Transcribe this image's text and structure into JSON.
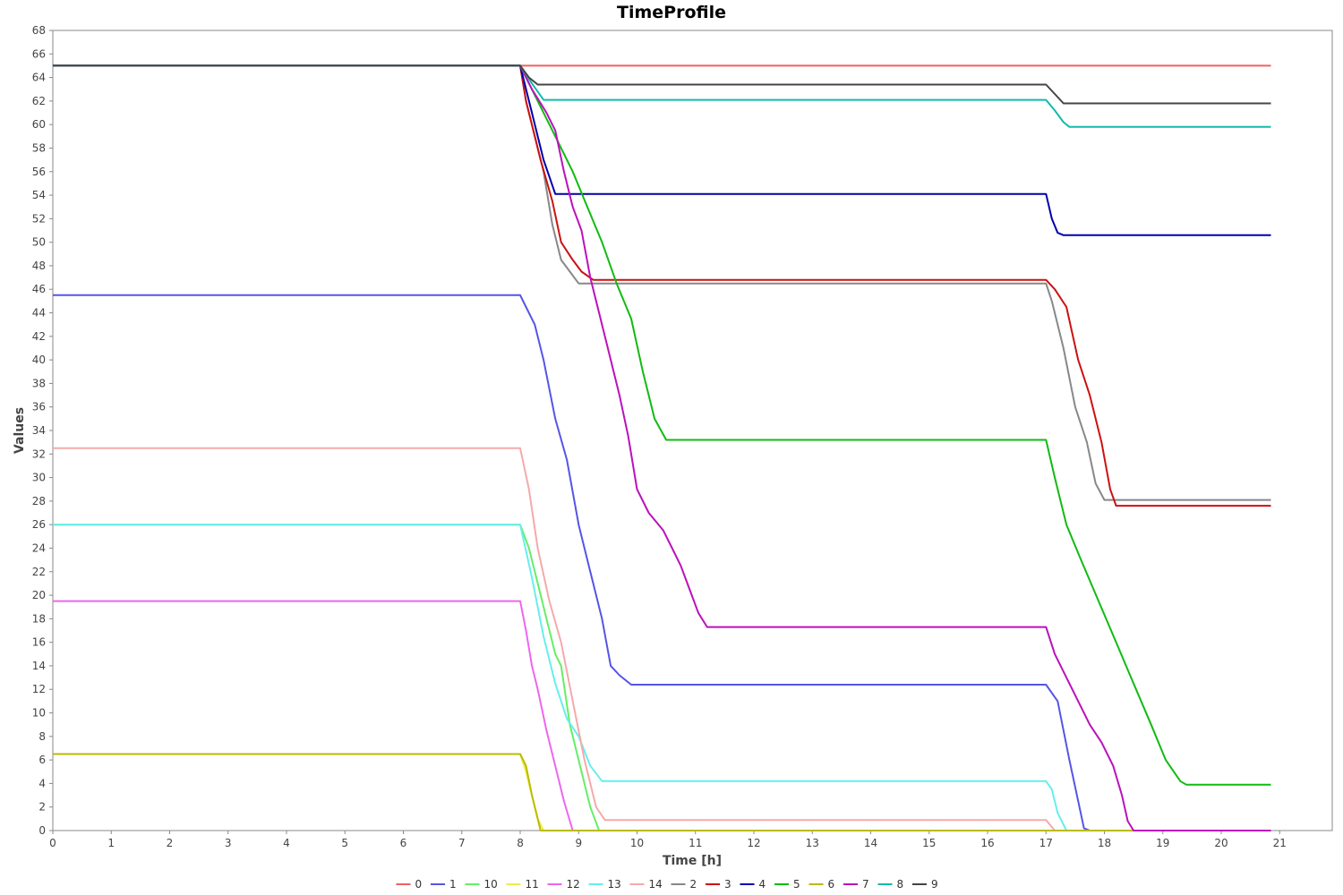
{
  "chart_data": {
    "type": "line",
    "title": "TimeProfile",
    "xlabel": "Time [h]",
    "ylabel": "Values",
    "xlim": [
      0,
      21.9
    ],
    "ylim": [
      0,
      68
    ],
    "xticks": [
      0,
      1,
      2,
      3,
      4,
      5,
      6,
      7,
      8,
      9,
      10,
      11,
      12,
      13,
      14,
      15,
      16,
      17,
      18,
      19,
      20,
      21
    ],
    "yticks": [
      0,
      2,
      4,
      6,
      8,
      10,
      12,
      14,
      16,
      18,
      20,
      22,
      24,
      26,
      28,
      30,
      32,
      34,
      36,
      38,
      40,
      42,
      44,
      46,
      48,
      50,
      52,
      54,
      56,
      58,
      60,
      62,
      64,
      66,
      68
    ],
    "grid": false,
    "legend_position": "bottom-center",
    "series": [
      {
        "name": "0",
        "color": "#f06060",
        "points": [
          [
            0,
            65
          ],
          [
            8,
            65
          ],
          [
            20.85,
            65
          ]
        ]
      },
      {
        "name": "1",
        "color": "#5555e6",
        "points": [
          [
            0,
            45.5
          ],
          [
            8,
            45.5
          ],
          [
            8.1,
            44.5
          ],
          [
            8.25,
            43
          ],
          [
            8.4,
            40
          ],
          [
            8.6,
            35
          ],
          [
            8.8,
            31.5
          ],
          [
            9.0,
            26
          ],
          [
            9.2,
            22
          ],
          [
            9.4,
            18
          ],
          [
            9.55,
            14
          ],
          [
            9.7,
            13.2
          ],
          [
            9.9,
            12.4
          ],
          [
            17,
            12.4
          ],
          [
            17.2,
            11
          ],
          [
            17.4,
            6
          ],
          [
            17.65,
            0.2
          ],
          [
            17.75,
            0
          ],
          [
            20.85,
            0
          ]
        ]
      },
      {
        "name": "10",
        "color": "#66ee66",
        "points": [
          [
            0,
            26
          ],
          [
            8,
            26
          ],
          [
            8.15,
            24
          ],
          [
            8.3,
            21
          ],
          [
            8.45,
            18
          ],
          [
            8.6,
            15
          ],
          [
            8.7,
            14
          ],
          [
            8.85,
            9
          ],
          [
            9.05,
            5
          ],
          [
            9.2,
            2
          ],
          [
            9.35,
            0
          ],
          [
            20.85,
            0
          ]
        ]
      },
      {
        "name": "11",
        "color": "#eeee44",
        "points": [
          [
            0,
            6.5
          ],
          [
            8,
            6.5
          ],
          [
            8.1,
            5
          ],
          [
            8.2,
            3
          ],
          [
            8.3,
            1
          ],
          [
            8.4,
            0
          ],
          [
            20.85,
            0
          ]
        ]
      },
      {
        "name": "12",
        "color": "#ee66ee",
        "points": [
          [
            0,
            19.5
          ],
          [
            8,
            19.5
          ],
          [
            8.1,
            17
          ],
          [
            8.2,
            14
          ],
          [
            8.3,
            12
          ],
          [
            8.45,
            8.5
          ],
          [
            8.6,
            5.5
          ],
          [
            8.75,
            2.5
          ],
          [
            8.9,
            0
          ],
          [
            20.85,
            0
          ]
        ]
      },
      {
        "name": "13",
        "color": "#66eeee",
        "points": [
          [
            0,
            26
          ],
          [
            8,
            26
          ],
          [
            8.2,
            21.5
          ],
          [
            8.4,
            16.5
          ],
          [
            8.6,
            12.5
          ],
          [
            8.8,
            9.5
          ],
          [
            9.0,
            8
          ],
          [
            9.2,
            5.5
          ],
          [
            9.4,
            4.2
          ],
          [
            17,
            4.2
          ],
          [
            17.1,
            3.5
          ],
          [
            17.2,
            1.5
          ],
          [
            17.35,
            0
          ],
          [
            20.85,
            0
          ]
        ]
      },
      {
        "name": "14",
        "color": "#f4aaaa",
        "points": [
          [
            0,
            32.5
          ],
          [
            8,
            32.5
          ],
          [
            8.15,
            29
          ],
          [
            8.3,
            24
          ],
          [
            8.5,
            19.5
          ],
          [
            8.7,
            16
          ],
          [
            8.9,
            11
          ],
          [
            9.1,
            6
          ],
          [
            9.3,
            2
          ],
          [
            9.45,
            0.9
          ],
          [
            17,
            0.9
          ],
          [
            17.15,
            0
          ],
          [
            20.85,
            0
          ]
        ]
      },
      {
        "name": "2",
        "color": "#888888",
        "points": [
          [
            0,
            65
          ],
          [
            8,
            65
          ],
          [
            8.1,
            62
          ],
          [
            8.25,
            59
          ],
          [
            8.4,
            56
          ],
          [
            8.55,
            51.5
          ],
          [
            8.7,
            48.5
          ],
          [
            8.85,
            47.5
          ],
          [
            9.0,
            46.5
          ],
          [
            17,
            46.5
          ],
          [
            17.1,
            45
          ],
          [
            17.3,
            41
          ],
          [
            17.5,
            36
          ],
          [
            17.7,
            33
          ],
          [
            17.85,
            29.5
          ],
          [
            18.0,
            28.1
          ],
          [
            20.85,
            28.1
          ]
        ]
      },
      {
        "name": "3",
        "color": "#cc1111",
        "points": [
          [
            0,
            65
          ],
          [
            8,
            65
          ],
          [
            8.1,
            62
          ],
          [
            8.25,
            59
          ],
          [
            8.35,
            57
          ],
          [
            8.55,
            53.5
          ],
          [
            8.7,
            50
          ],
          [
            8.9,
            48.5
          ],
          [
            9.05,
            47.5
          ],
          [
            9.25,
            46.8
          ],
          [
            17,
            46.8
          ],
          [
            17.15,
            46
          ],
          [
            17.35,
            44.5
          ],
          [
            17.55,
            40
          ],
          [
            17.75,
            37
          ],
          [
            17.95,
            33
          ],
          [
            18.1,
            29
          ],
          [
            18.2,
            27.6
          ],
          [
            20.85,
            27.6
          ]
        ]
      },
      {
        "name": "4",
        "color": "#0000aa",
        "points": [
          [
            0,
            65
          ],
          [
            8,
            65
          ],
          [
            8.2,
            61
          ],
          [
            8.4,
            57
          ],
          [
            8.6,
            54.1
          ],
          [
            17,
            54.1
          ],
          [
            17.1,
            52
          ],
          [
            17.2,
            50.8
          ],
          [
            17.3,
            50.6
          ],
          [
            20.85,
            50.6
          ]
        ]
      },
      {
        "name": "5",
        "color": "#11bb11",
        "points": [
          [
            0,
            65
          ],
          [
            8,
            65
          ],
          [
            8.3,
            62
          ],
          [
            8.6,
            59
          ],
          [
            8.9,
            56
          ],
          [
            9.15,
            53
          ],
          [
            9.4,
            50
          ],
          [
            9.65,
            46.5
          ],
          [
            9.9,
            43.5
          ],
          [
            10.1,
            39
          ],
          [
            10.3,
            35
          ],
          [
            10.5,
            33.2
          ],
          [
            17,
            33.2
          ],
          [
            17.15,
            30
          ],
          [
            17.35,
            26
          ],
          [
            17.6,
            23
          ],
          [
            17.9,
            19.5
          ],
          [
            18.2,
            16
          ],
          [
            18.5,
            12.5
          ],
          [
            18.8,
            9
          ],
          [
            19.05,
            6
          ],
          [
            19.3,
            4.2
          ],
          [
            19.4,
            3.9
          ],
          [
            20.85,
            3.9
          ]
        ]
      },
      {
        "name": "6",
        "color": "#bbbb00",
        "points": [
          [
            0,
            6.5
          ],
          [
            8,
            6.5
          ],
          [
            8.1,
            5.5
          ],
          [
            8.2,
            3
          ],
          [
            8.3,
            1
          ],
          [
            8.35,
            0
          ],
          [
            20.85,
            0
          ]
        ]
      },
      {
        "name": "7",
        "color": "#bb11bb",
        "points": [
          [
            0,
            65
          ],
          [
            8,
            65
          ],
          [
            8.2,
            63
          ],
          [
            8.45,
            61
          ],
          [
            8.6,
            59.5
          ],
          [
            8.75,
            56
          ],
          [
            8.9,
            53
          ],
          [
            9.05,
            51
          ],
          [
            9.2,
            47
          ],
          [
            9.35,
            44
          ],
          [
            9.5,
            41
          ],
          [
            9.7,
            37
          ],
          [
            9.85,
            33.5
          ],
          [
            10.0,
            29
          ],
          [
            10.2,
            27
          ],
          [
            10.45,
            25.5
          ],
          [
            10.6,
            24
          ],
          [
            10.75,
            22.5
          ],
          [
            10.9,
            20.5
          ],
          [
            11.05,
            18.5
          ],
          [
            11.2,
            17.3
          ],
          [
            17,
            17.3
          ],
          [
            17.15,
            15
          ],
          [
            17.35,
            13
          ],
          [
            17.55,
            11
          ],
          [
            17.75,
            9
          ],
          [
            17.95,
            7.5
          ],
          [
            18.15,
            5.5
          ],
          [
            18.3,
            3
          ],
          [
            18.4,
            0.8
          ],
          [
            18.5,
            0
          ],
          [
            20.85,
            0
          ]
        ]
      },
      {
        "name": "8",
        "color": "#11bbaa",
        "points": [
          [
            0,
            65
          ],
          [
            8,
            65
          ],
          [
            8.2,
            63.5
          ],
          [
            8.4,
            62.1
          ],
          [
            17,
            62.1
          ],
          [
            17.15,
            61.2
          ],
          [
            17.3,
            60.2
          ],
          [
            17.4,
            59.8
          ],
          [
            20.85,
            59.8
          ]
        ]
      },
      {
        "name": "9",
        "color": "#444444",
        "points": [
          [
            0,
            65
          ],
          [
            8,
            65
          ],
          [
            8.15,
            64
          ],
          [
            8.3,
            63.4
          ],
          [
            17,
            63.4
          ],
          [
            17.15,
            62.6
          ],
          [
            17.3,
            61.8
          ],
          [
            20.85,
            61.8
          ]
        ]
      }
    ]
  }
}
